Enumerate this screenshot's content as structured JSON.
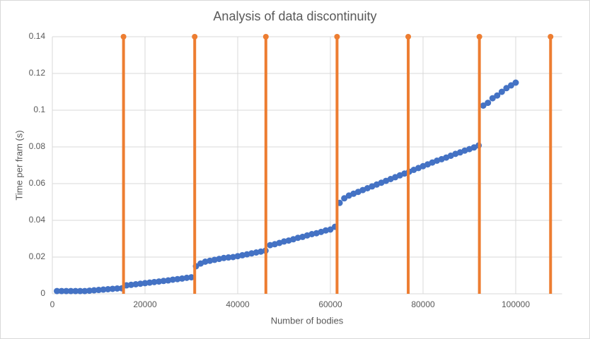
{
  "chart_data": {
    "type": "scatter",
    "title": "Analysis of data discontinuity",
    "x_label": "Number of bodies",
    "y_label": "Time per fram (s)",
    "xlim": [
      0,
      110000
    ],
    "xticks": [
      0,
      20000,
      40000,
      60000,
      80000,
      100000
    ],
    "ylim": [
      0,
      0.14
    ],
    "yticks": [
      0,
      0.02,
      0.04,
      0.06,
      0.08,
      0.1,
      0.12,
      0.14
    ],
    "grid": true,
    "series": [
      {
        "color": "#4472c4",
        "style": "markers",
        "x": [
          1000,
          2000,
          3000,
          4000,
          5000,
          6000,
          7000,
          8000,
          9000,
          10000,
          11000,
          12000,
          13000,
          14000,
          15000,
          16000,
          17000,
          18000,
          19000,
          20000,
          21000,
          22000,
          23000,
          24000,
          25000,
          26000,
          27000,
          28000,
          29000,
          30000,
          31000,
          32000,
          33000,
          34000,
          35000,
          36000,
          37000,
          38000,
          39000,
          40000,
          41000,
          42000,
          43000,
          44000,
          45000,
          46000,
          47000,
          48000,
          49000,
          50000,
          51000,
          52000,
          53000,
          54000,
          55000,
          56000,
          57000,
          58000,
          59000,
          60000,
          61000,
          62000,
          63000,
          64000,
          65000,
          66000,
          67000,
          68000,
          69000,
          70000,
          71000,
          72000,
          73000,
          74000,
          75000,
          76000,
          77000,
          78000,
          79000,
          80000,
          81000,
          82000,
          83000,
          84000,
          85000,
          86000,
          87000,
          88000,
          89000,
          90000,
          91000,
          92000,
          93000,
          94000,
          95000,
          96000,
          97000,
          98000,
          99000,
          100000
        ],
        "values": [
          0.0015,
          0.0015,
          0.0015,
          0.0015,
          0.0015,
          0.0015,
          0.0015,
          0.0017,
          0.0019,
          0.0021,
          0.0023,
          0.0025,
          0.0027,
          0.0029,
          0.003,
          0.0046,
          0.0049,
          0.0052,
          0.0055,
          0.0058,
          0.0061,
          0.0064,
          0.0067,
          0.007,
          0.0073,
          0.0077,
          0.008,
          0.0083,
          0.0087,
          0.009,
          0.015,
          0.0165,
          0.0175,
          0.018,
          0.0185,
          0.019,
          0.0195,
          0.0198,
          0.02,
          0.0205,
          0.021,
          0.0215,
          0.022,
          0.0225,
          0.023,
          0.0235,
          0.0265,
          0.027,
          0.0277,
          0.0285,
          0.029,
          0.0297,
          0.0305,
          0.031,
          0.0318,
          0.0325,
          0.033,
          0.0337,
          0.0345,
          0.035,
          0.0365,
          0.0495,
          0.052,
          0.0535,
          0.0545,
          0.0555,
          0.0565,
          0.0575,
          0.0585,
          0.0595,
          0.0605,
          0.0615,
          0.0625,
          0.0635,
          0.0645,
          0.0655,
          0.0665,
          0.0675,
          0.0685,
          0.0695,
          0.0705,
          0.0715,
          0.0725,
          0.0733,
          0.0742,
          0.0752,
          0.0762,
          0.077,
          0.078,
          0.0788,
          0.0797,
          0.0808,
          0.1025,
          0.104,
          0.1065,
          0.108,
          0.11,
          0.112,
          0.1135,
          0.115
        ]
      },
      {
        "color": "#ed7d31",
        "style": "drop-lines",
        "x": [
          15360,
          30720,
          46080,
          61440,
          76800,
          92160,
          107520
        ],
        "values": [
          0.14,
          0.14,
          0.14,
          0.14,
          0.14,
          0.14,
          0.14
        ]
      }
    ]
  }
}
